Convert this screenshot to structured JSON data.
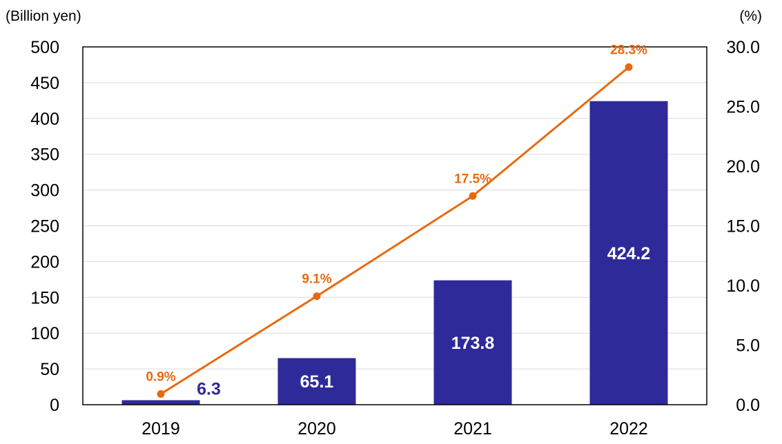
{
  "chart_data": {
    "type": "bar",
    "categories": [
      "2019",
      "2020",
      "2021",
      "2022"
    ],
    "series": [
      {
        "type": "bar",
        "axis": "left",
        "values": [
          6.3,
          65.1,
          173.8,
          424.2
        ],
        "labels": [
          "6.3",
          "65.1",
          "173.8",
          "424.2"
        ],
        "color": "#2E2A9A"
      },
      {
        "type": "line",
        "axis": "right",
        "values": [
          0.9,
          9.1,
          17.5,
          28.3
        ],
        "labels": [
          "0.9%",
          "9.1%",
          "17.5%",
          "28.3%"
        ],
        "color": "#E8690F"
      }
    ],
    "y_left": {
      "unit_label": "(Billion yen)",
      "ticks": [
        "0",
        "50",
        "100",
        "150",
        "200",
        "250",
        "300",
        "350",
        "400",
        "450",
        "500"
      ],
      "lim": [
        0,
        500
      ]
    },
    "y_right": {
      "unit_label": "(%)",
      "ticks": [
        "0.0",
        "5.0",
        "10.0",
        "15.0",
        "20.0",
        "25.0",
        "30.0"
      ],
      "lim": [
        0,
        30
      ]
    },
    "grid": true,
    "legend": "none"
  }
}
